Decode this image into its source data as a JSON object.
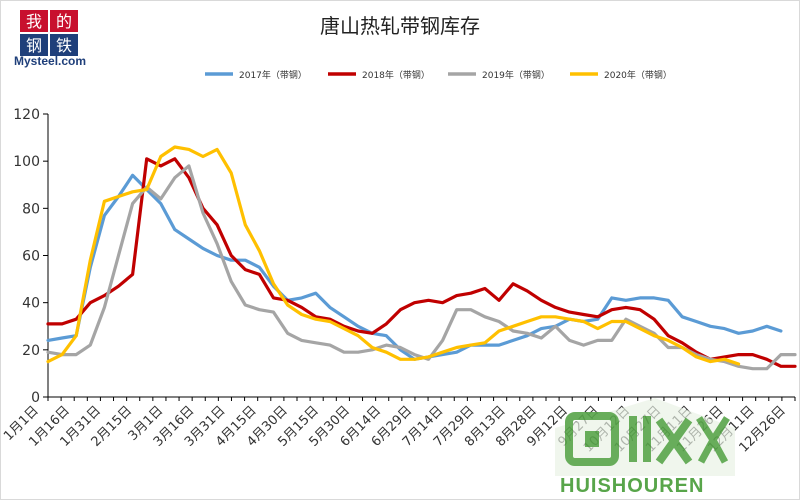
{
  "header": {
    "logo_text": "我的钢铁",
    "brand": "Mysteel.com",
    "title": "唐山热轧带钢库存"
  },
  "watermark": {
    "icon": "recycle-box-icon",
    "text": "HUISHOUREN"
  },
  "colors": {
    "2017": "#5b9bd5",
    "2018": "#c00000",
    "2019": "#a5a5a5",
    "2020": "#ffc000",
    "axis": "#000000",
    "watermark": "#58a54a"
  },
  "chart_data": {
    "type": "line",
    "title": "唐山热轧带钢库存",
    "xlabel": "",
    "ylabel": "",
    "ylim": [
      0,
      120
    ],
    "yticks": [
      0,
      20,
      40,
      60,
      80,
      100,
      120
    ],
    "grid": false,
    "legend_position": "top",
    "x_tick_labels": [
      "1月1日",
      "1月16日",
      "1月31日",
      "2月15日",
      "3月1日",
      "3月16日",
      "3月31日",
      "4月15日",
      "4月30日",
      "5月15日",
      "5月30日",
      "6月14日",
      "6月29日",
      "7月14日",
      "7月29日",
      "8月13日",
      "8月28日",
      "9月12日",
      "9月27日",
      "10月12日",
      "10月27日",
      "11月11日",
      "11月26日",
      "12月11日",
      "12月26日"
    ],
    "series": [
      {
        "name": "2017年（带钢）",
        "values": [
          24,
          25,
          26,
          55,
          77,
          85,
          94,
          88,
          82,
          71,
          67,
          63,
          60,
          58,
          58,
          55,
          47,
          41,
          42,
          44,
          38,
          34,
          30,
          27,
          26,
          20,
          16,
          17,
          18,
          19,
          22,
          22,
          22,
          24,
          26,
          29,
          30,
          33,
          32,
          33,
          42,
          41,
          42,
          42,
          41,
          34,
          32,
          30,
          29,
          27,
          28,
          30,
          28
        ]
      },
      {
        "name": "2018年（带钢）",
        "values": [
          31,
          31,
          33,
          40,
          43,
          47,
          52,
          101,
          98,
          101,
          93,
          80,
          73,
          60,
          54,
          52,
          42,
          41,
          38,
          34,
          33,
          30,
          28,
          27,
          31,
          37,
          40,
          41,
          40,
          43,
          44,
          46,
          41,
          48,
          45,
          41,
          38,
          36,
          35,
          34,
          37,
          38,
          37,
          33,
          26,
          23,
          19,
          16,
          17,
          18,
          18,
          16,
          13,
          13
        ]
      },
      {
        "name": "2019年（带钢）",
        "values": [
          19,
          18,
          18,
          22,
          38,
          60,
          82,
          89,
          84,
          93,
          98,
          78,
          65,
          49,
          39,
          37,
          36,
          27,
          24,
          23,
          22,
          19,
          19,
          20,
          22,
          21,
          18,
          16,
          24,
          37,
          37,
          34,
          32,
          28,
          27,
          25,
          30,
          24,
          22,
          24,
          24,
          33,
          30,
          27,
          21,
          21,
          18,
          16,
          15,
          13,
          12,
          12,
          18,
          18
        ]
      },
      {
        "name": "2020年（带钢）",
        "values": [
          15,
          18,
          26,
          58,
          83,
          85,
          87,
          88,
          102,
          106,
          105,
          102,
          105,
          95,
          73,
          62,
          48,
          39,
          35,
          33,
          32,
          29,
          26,
          21,
          19,
          16,
          16,
          17,
          19,
          21,
          22,
          23,
          28,
          30,
          32,
          34,
          34,
          33,
          32,
          29,
          32,
          32,
          29,
          26,
          24,
          21,
          17,
          15,
          16,
          14
        ]
      }
    ]
  }
}
